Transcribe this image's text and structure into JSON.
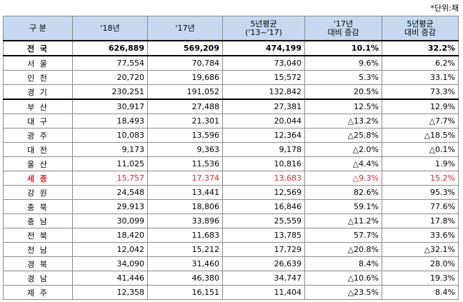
{
  "unit_label": "*단위:채",
  "headers": [
    {
      "line1": "구  분",
      "line2": ""
    },
    {
      "line1": "'18년",
      "line2": ""
    },
    {
      "line1": "'17년",
      "line2": ""
    },
    {
      "line1": "5년평균",
      "line2": "('13~'17)"
    },
    {
      "line1": "'17년",
      "line2": "대비 증감"
    },
    {
      "line1": "5년평균",
      "line2": "대비 증감"
    }
  ],
  "rows": [
    {
      "name": "전 국",
      "v18": "626,889",
      "v17": "569,209",
      "avg5": "474,199",
      "vs17": "10.1%",
      "vsavg": "32.2%",
      "style": "total"
    },
    {
      "name": "서 울",
      "v18": "77,554",
      "v17": "70,784",
      "avg5": "73,040",
      "vs17": "9.6%",
      "vsavg": "6.2%",
      "style": ""
    },
    {
      "name": "인 천",
      "v18": "20,720",
      "v17": "19,686",
      "avg5": "15,572",
      "vs17": "5.3%",
      "vsavg": "33.1%",
      "style": ""
    },
    {
      "name": "경 기",
      "v18": "230,251",
      "v17": "191,052",
      "avg5": "132,842",
      "vs17": "20.5%",
      "vsavg": "73.3%",
      "style": "gsep"
    },
    {
      "name": "부 산",
      "v18": "30,917",
      "v17": "27,488",
      "avg5": "27,381",
      "vs17": "12.5%",
      "vsavg": "12.9%",
      "style": ""
    },
    {
      "name": "대 구",
      "v18": "18,493",
      "v17": "21,301",
      "avg5": "20,044",
      "vs17": "△13.2%",
      "vsavg": "△7.7%",
      "style": ""
    },
    {
      "name": "광 주",
      "v18": "10,083",
      "v17": "13,596",
      "avg5": "12,364",
      "vs17": "△25.8%",
      "vsavg": "△18.5%",
      "style": ""
    },
    {
      "name": "대 전",
      "v18": "9,173",
      "v17": "9,363",
      "avg5": "9,178",
      "vs17": "△2.0%",
      "vsavg": "△0.1%",
      "style": ""
    },
    {
      "name": "울 산",
      "v18": "11,025",
      "v17": "11,536",
      "avg5": "10,816",
      "vs17": "△4.4%",
      "vsavg": "1.9%",
      "style": ""
    },
    {
      "name": "세 종",
      "v18": "15,757",
      "v17": "17,374",
      "avg5": "13,683",
      "vs17": "△9.3%",
      "vsavg": "15.2%",
      "style": "hl"
    },
    {
      "name": "강 원",
      "v18": "24,548",
      "v17": "13,441",
      "avg5": "12,569",
      "vs17": "82.6%",
      "vsavg": "95.3%",
      "style": ""
    },
    {
      "name": "충 북",
      "v18": "29,913",
      "v17": "18,806",
      "avg5": "16,846",
      "vs17": "59.1%",
      "vsavg": "77.6%",
      "style": ""
    },
    {
      "name": "충 남",
      "v18": "30,099",
      "v17": "33,896",
      "avg5": "25,559",
      "vs17": "△11.2%",
      "vsavg": "17.8%",
      "style": ""
    },
    {
      "name": "전 북",
      "v18": "18,420",
      "v17": "11,683",
      "avg5": "13,785",
      "vs17": "57.7%",
      "vsavg": "33.6%",
      "style": ""
    },
    {
      "name": "전 남",
      "v18": "12,042",
      "v17": "15,212",
      "avg5": "17,729",
      "vs17": "△20.8%",
      "vsavg": "△32.1%",
      "style": ""
    },
    {
      "name": "경 북",
      "v18": "34,090",
      "v17": "31,460",
      "avg5": "26,639",
      "vs17": "8.4%",
      "vsavg": "28.0%",
      "style": ""
    },
    {
      "name": "경 남",
      "v18": "41,446",
      "v17": "46,380",
      "avg5": "34,747",
      "vs17": "△10.6%",
      "vsavg": "19.3%",
      "style": ""
    },
    {
      "name": "제 주",
      "v18": "12,358",
      "v17": "16,151",
      "avg5": "11,404",
      "vs17": "△23.5%",
      "vsavg": "8.4%",
      "style": ""
    }
  ]
}
